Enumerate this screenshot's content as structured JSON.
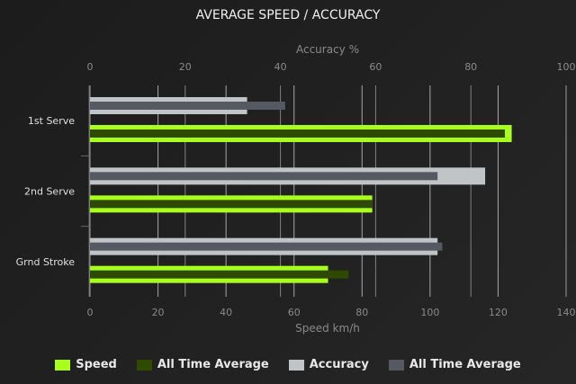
{
  "chart_data": {
    "type": "bar",
    "orientation": "horizontal",
    "title": "AVERAGE SPEED / ACCURACY",
    "categories": [
      "1st Serve",
      "2nd Serve",
      "Grnd Stroke"
    ],
    "top_axis": {
      "label": "Accuracy %",
      "range": [
        0,
        100
      ],
      "ticks": [
        0,
        20,
        40,
        60,
        80,
        100
      ]
    },
    "bottom_axis": {
      "label": "Speed km/h",
      "range": [
        0,
        140
      ],
      "ticks": [
        0,
        20,
        40,
        60,
        80,
        100,
        120,
        140
      ]
    },
    "grid": true,
    "legend_position": "bottom",
    "series": [
      {
        "name": "Speed",
        "axis": "bottom",
        "color": "#a8ff1e",
        "values": [
          124,
          83,
          70
        ]
      },
      {
        "name": "All Time Average",
        "axis": "bottom",
        "color": "#2e4a00",
        "values": [
          122,
          83,
          76
        ]
      },
      {
        "name": "Accuracy",
        "axis": "top",
        "color": "#c0c4c6",
        "values": [
          33,
          83,
          73
        ]
      },
      {
        "name": "All Time Average",
        "axis": "top",
        "color": "#555a62",
        "values": [
          41,
          73,
          74
        ]
      }
    ]
  }
}
